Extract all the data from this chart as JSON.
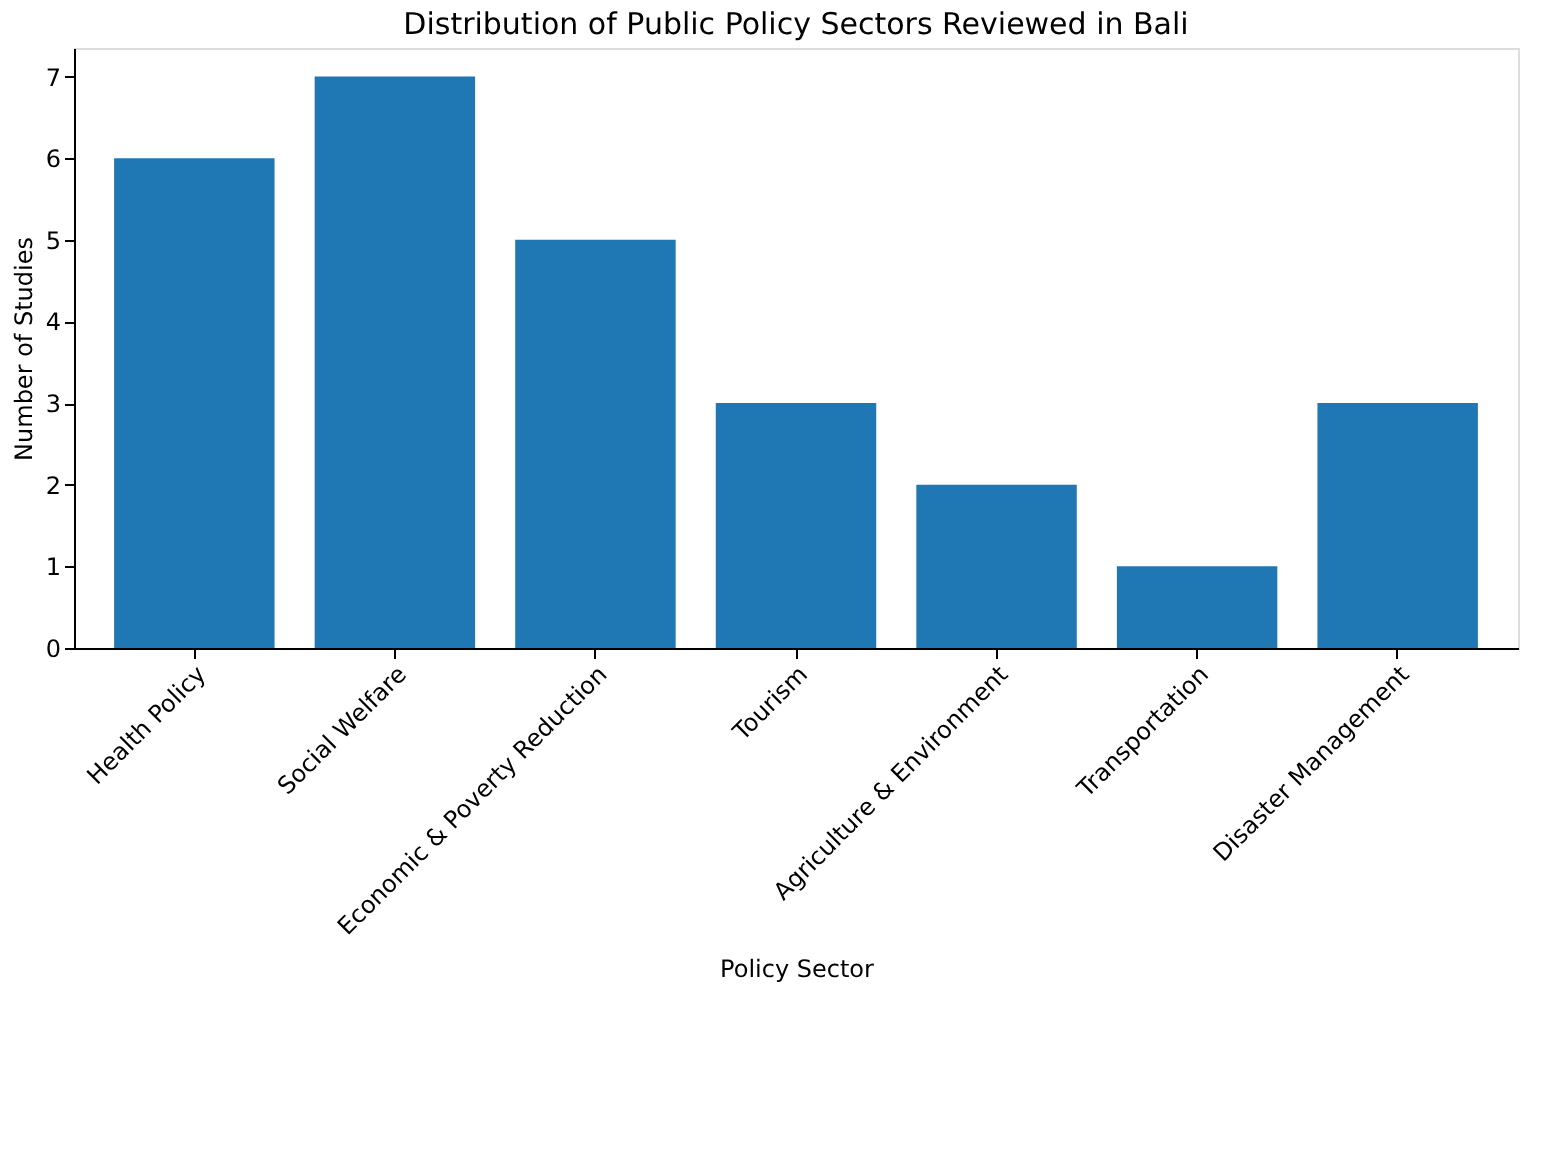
{
  "chart_data": {
    "type": "bar",
    "title": "Distribution of Public Policy Sectors Reviewed in Bali",
    "xlabel": "Policy Sector",
    "ylabel": "Number of Studies",
    "categories": [
      "Health Policy",
      "Social Welfare",
      "Economic & Poverty Reduction",
      "Tourism",
      "Agriculture & Environment",
      "Transportation",
      "Disaster Management"
    ],
    "values": [
      6,
      7,
      5,
      3,
      2,
      1,
      3
    ],
    "color": "#1f77b4",
    "ylim": [
      0,
      7.35
    ],
    "yticks": [
      0,
      1,
      2,
      3,
      4,
      5,
      6,
      7
    ],
    "grid": false
  }
}
